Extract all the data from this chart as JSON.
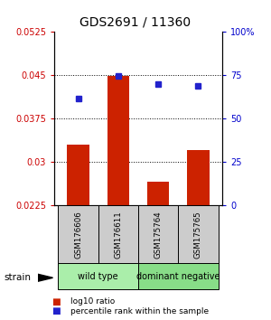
{
  "title": "GDS2691 / 11360",
  "categories": [
    "GSM176606",
    "GSM176611",
    "GSM175764",
    "GSM175765"
  ],
  "bar_values": [
    0.033,
    0.0449,
    0.0265,
    0.032
  ],
  "bar_base": 0.0225,
  "bar_color": "#cc2200",
  "dot_values": [
    0.041,
    0.0449,
    0.0435,
    0.0432
  ],
  "dot_color": "#2222cc",
  "ylim_left": [
    0.0225,
    0.0525
  ],
  "ylim_right": [
    0,
    100
  ],
  "yticks_left": [
    0.0225,
    0.03,
    0.0375,
    0.045,
    0.0525
  ],
  "ytick_labels_left": [
    "0.0225",
    "0.03",
    "0.0375",
    "0.045",
    "0.0525"
  ],
  "yticks_right": [
    0,
    25,
    50,
    75,
    100
  ],
  "ytick_labels_right": [
    "0",
    "25",
    "50",
    "75",
    "100%"
  ],
  "groups": [
    {
      "label": "wild type",
      "indices": [
        0,
        1
      ],
      "color": "#aaeeaa"
    },
    {
      "label": "dominant negative",
      "indices": [
        2,
        3
      ],
      "color": "#88dd88"
    }
  ],
  "strain_label": "strain",
  "legend_items": [
    {
      "color": "#cc2200",
      "label": "log10 ratio"
    },
    {
      "color": "#2222cc",
      "label": "percentile rank within the sample"
    }
  ],
  "bar_width": 0.55,
  "figsize": [
    3.0,
    3.54
  ],
  "dpi": 100
}
